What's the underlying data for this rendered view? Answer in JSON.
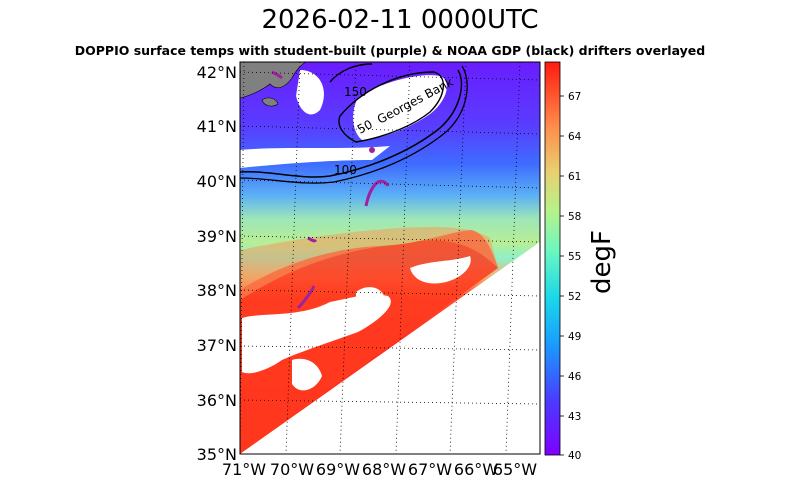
{
  "title": "2026-02-11 0000UTC",
  "subtitle": "DOPPIO surface temps with student-built (purple) & NOAA GDP (black) drifters overlayed",
  "map": {
    "lat_labels": [
      "42°N",
      "41°N",
      "40°N",
      "39°N",
      "38°N",
      "37°N",
      "36°N",
      "35°N"
    ],
    "lon_labels": [
      "71°W",
      "70°W",
      "69°W",
      "68°W",
      "67°W",
      "66°W",
      "65°W"
    ],
    "contour_labels": [
      "150",
      "100",
      "50"
    ],
    "place_label": "Georges Bank",
    "student_drifter_color": "#a020a0",
    "gdp_drifter_color": "#000000",
    "land_color": "#808080"
  },
  "colorbar": {
    "label": "degF",
    "ticks": [
      "67",
      "64",
      "61",
      "58",
      "55",
      "52",
      "49",
      "46",
      "43",
      "40"
    ],
    "min": 40,
    "max": 69,
    "colormap": "rainbow"
  }
}
